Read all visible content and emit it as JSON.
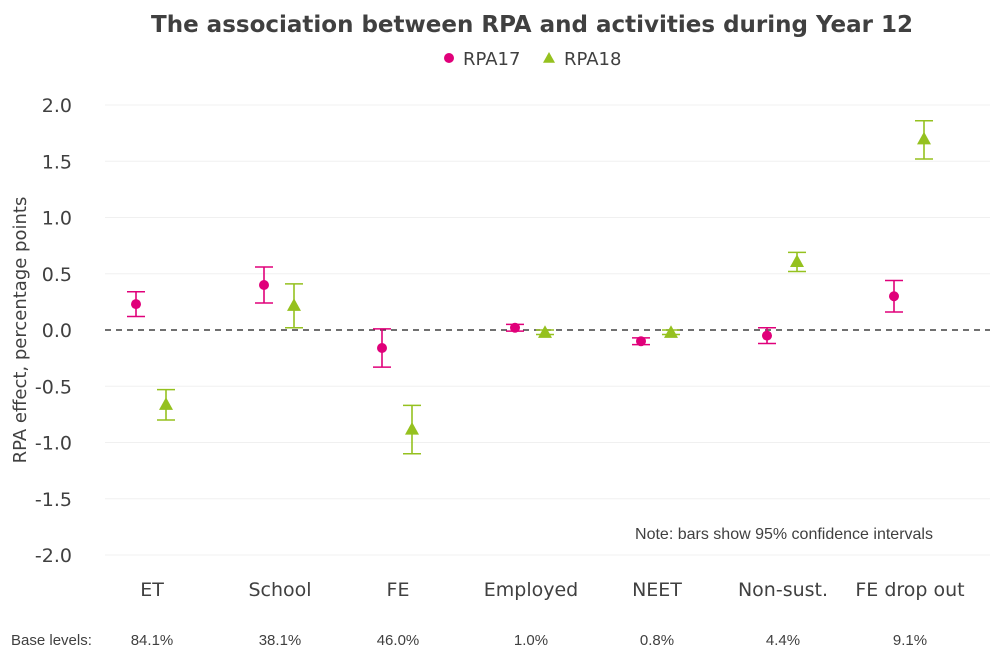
{
  "chart_data": {
    "type": "scatter",
    "title": "The association between RPA and activities during Year 12",
    "xlabel": "",
    "ylabel": "RPA effect, percentage points",
    "ylim": [
      -2.0,
      2.0
    ],
    "yticks": [
      "2.0",
      "1.5",
      "1.0",
      "0.5",
      "0.0",
      "-0.5",
      "-1.0",
      "-1.5",
      "-2.0"
    ],
    "ytick_values": [
      2.0,
      1.5,
      1.0,
      0.5,
      0.0,
      -0.5,
      -1.0,
      -1.5,
      -2.0
    ],
    "reference_line": 0.0,
    "categories": [
      "ET",
      "School",
      "FE",
      "Employed",
      "NEET",
      "Non-sust.",
      "FE drop out"
    ],
    "series": [
      {
        "name": "RPA17",
        "marker": "circle",
        "color": "#e0007a",
        "values": [
          0.23,
          0.4,
          -0.16,
          0.02,
          -0.1,
          -0.05,
          0.3
        ],
        "ci_low": [
          0.12,
          0.24,
          -0.33,
          -0.01,
          -0.13,
          -0.12,
          0.16
        ],
        "ci_high": [
          0.34,
          0.56,
          0.01,
          0.05,
          -0.07,
          0.02,
          0.44
        ]
      },
      {
        "name": "RPA18",
        "marker": "triangle",
        "color": "#95c11f",
        "values": [
          -0.66,
          0.22,
          -0.88,
          -0.02,
          -0.02,
          0.61,
          1.7
        ],
        "ci_low": [
          -0.8,
          0.02,
          -1.1,
          -0.04,
          -0.04,
          0.52,
          1.52
        ],
        "ci_high": [
          -0.53,
          0.41,
          -0.67,
          0.0,
          0.0,
          0.69,
          1.86
        ]
      }
    ],
    "note": "Note: bars show 95% confidence intervals",
    "base_levels_label": "Base levels:",
    "base_levels": [
      "84.1%",
      "38.1%",
      "46.0%",
      "1.0%",
      "0.8%",
      "4.4%",
      "9.1%"
    ]
  }
}
